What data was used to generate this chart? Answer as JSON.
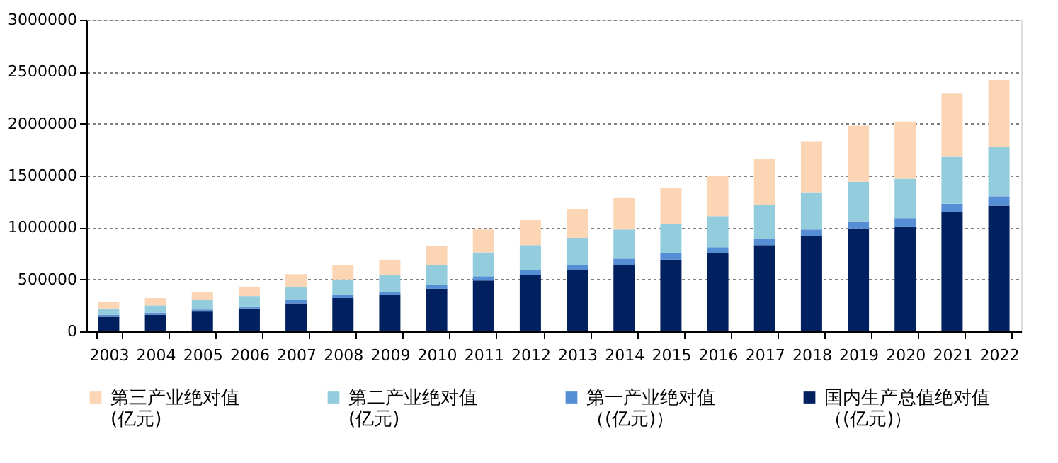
{
  "chart_data": {
    "type": "bar",
    "stacked": true,
    "categories": [
      "2003",
      "2004",
      "2005",
      "2006",
      "2007",
      "2008",
      "2009",
      "2010",
      "2011",
      "2012",
      "2013",
      "2014",
      "2015",
      "2016",
      "2017",
      "2018",
      "2019",
      "2020",
      "2021",
      "2022"
    ],
    "series": [
      {
        "name": "国内生产总值绝对值（(亿元)）",
        "color": "#002060",
        "values": [
          140000,
          160000,
          190000,
          220000,
          270000,
          320000,
          350000,
          410000,
          490000,
          540000,
          590000,
          640000,
          690000,
          750000,
          830000,
          920000,
          990000,
          1010000,
          1150000,
          1210000
        ]
      },
      {
        "name": "第一产业绝对值（(亿元)）",
        "color": "#558ed5",
        "values": [
          20000,
          20000,
          20000,
          20000,
          30000,
          30000,
          30000,
          40000,
          40000,
          50000,
          50000,
          60000,
          60000,
          60000,
          60000,
          60000,
          70000,
          80000,
          80000,
          90000
        ]
      },
      {
        "name": "第二产业绝对值(亿元)",
        "color": "#93cddd",
        "values": [
          60000,
          70000,
          90000,
          100000,
          130000,
          150000,
          160000,
          190000,
          230000,
          240000,
          260000,
          280000,
          280000,
          300000,
          330000,
          360000,
          380000,
          380000,
          450000,
          480000
        ]
      },
      {
        "name": "第三产业绝对值(亿元)",
        "color": "#fcd5b5",
        "values": [
          60000,
          70000,
          80000,
          90000,
          120000,
          140000,
          150000,
          180000,
          220000,
          240000,
          280000,
          310000,
          350000,
          390000,
          440000,
          490000,
          540000,
          550000,
          610000,
          640000
        ]
      }
    ],
    "ylim": [
      0,
      3000000
    ],
    "yticks": [
      0,
      500000,
      1000000,
      1500000,
      2000000,
      2500000,
      3000000
    ],
    "grid": "y",
    "legend": "bottom"
  }
}
